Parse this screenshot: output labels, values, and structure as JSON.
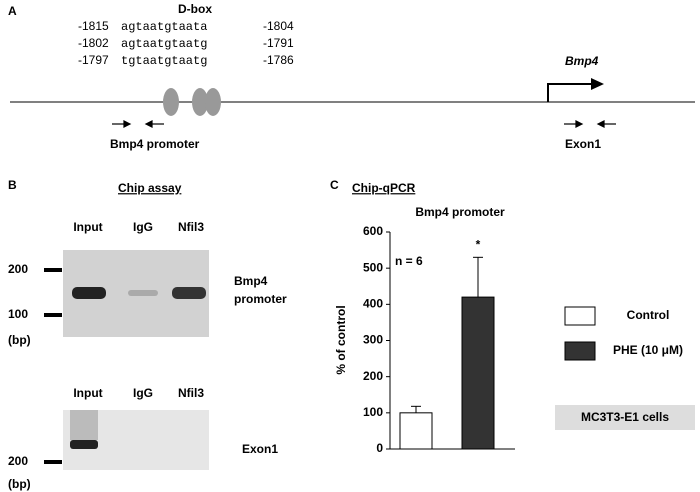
{
  "panel_a": {
    "label": "A",
    "dbox_title": "D-box",
    "sequences": [
      {
        "start": "-1815",
        "seq": "agtaatgtaata",
        "end": "-1804"
      },
      {
        "start": "-1802",
        "seq": "agtaatgtaatg",
        "end": "-1791"
      },
      {
        "start": "-1797",
        "seq": "tgtaatgtaatg",
        "end": "-1786"
      }
    ],
    "promoter_label": "Bmp4 promoter",
    "gene": "Bmp4",
    "exon_label": "Exon1"
  },
  "panel_b": {
    "label": "B",
    "title": "Chip assay",
    "gels": [
      {
        "lanes": [
          "Input",
          "IgG",
          "Nfil3"
        ],
        "name": [
          "Bmp4",
          "promoter"
        ],
        "markers": [
          "200",
          "100",
          "(bp)"
        ]
      },
      {
        "lanes": [
          "Input",
          "IgG",
          "Nfil3"
        ],
        "name": [
          "Exon1"
        ],
        "markers": [
          "200",
          "(bp)"
        ]
      }
    ]
  },
  "chart_data": {
    "type": "bar",
    "panel_label": "C",
    "heading": "Chip-qPCR",
    "title": "Bmp4 promoter",
    "ylabel": "% of control",
    "categories": [
      null
    ],
    "series": [
      {
        "name": "Control",
        "color": "#ffffff",
        "values": [
          100
        ],
        "errors": [
          18
        ]
      },
      {
        "name": "PHE (10 μM)",
        "color": "#333333",
        "values": [
          420
        ],
        "errors": [
          110
        ]
      }
    ],
    "ylim": [
      0,
      600
    ],
    "yticks": [
      0,
      100,
      200,
      300,
      400,
      500,
      600
    ],
    "annotations": [
      "n = 6",
      "*"
    ],
    "cell_label": "MC3T3-E1 cells"
  }
}
